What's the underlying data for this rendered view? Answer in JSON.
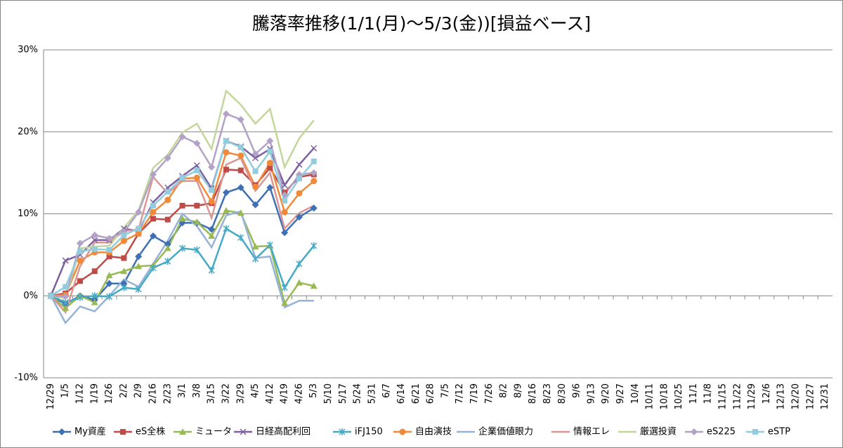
{
  "chart_data": {
    "type": "line",
    "title": "騰落率推移(1/1(月)～5/3(金))[損益ベース]",
    "categories": [
      "12/29",
      "1/5",
      "1/12",
      "1/19",
      "1/26",
      "2/2",
      "2/9",
      "2/16",
      "2/23",
      "3/1",
      "3/8",
      "3/15",
      "3/22",
      "3/29",
      "4/5",
      "4/12",
      "4/19",
      "4/26",
      "5/3",
      "5/10",
      "5/17",
      "5/24",
      "5/31",
      "6/7",
      "6/14",
      "6/21",
      "6/28",
      "7/5",
      "7/12",
      "7/19",
      "7/26",
      "8/2",
      "8/9",
      "8/16",
      "8/23",
      "8/30",
      "9/6",
      "9/13",
      "9/20",
      "9/27",
      "10/4",
      "10/11",
      "10/18",
      "10/25",
      "11/1",
      "11/8",
      "11/15",
      "11/22",
      "11/29",
      "12/6",
      "12/13",
      "12/20",
      "12/27",
      "12/31"
    ],
    "ylim": [
      -10,
      30
    ],
    "yticks": [
      {
        "value": -10,
        "label": "-10%"
      },
      {
        "value": 0,
        "label": "0%"
      },
      {
        "value": 10,
        "label": "10%"
      },
      {
        "value": 20,
        "label": "20%"
      },
      {
        "value": 30,
        "label": "30%"
      }
    ],
    "grid": true,
    "legend": "bottom",
    "series": [
      {
        "name": "My資産",
        "color": "#3f6fb5",
        "marker": "diamond",
        "values": [
          0,
          -1,
          0,
          -0.5,
          1.5,
          1.5,
          4.8,
          7.3,
          6.3,
          8.9,
          8.9,
          8.1,
          12.6,
          13.2,
          11.1,
          13.2,
          7.7,
          9.6,
          10.7,
          null,
          null,
          null,
          null,
          null,
          null,
          null,
          null,
          null,
          null,
          null,
          null,
          null,
          null,
          null,
          null,
          null,
          null,
          null,
          null,
          null,
          null,
          null,
          null,
          null,
          null,
          null,
          null,
          null,
          null,
          null,
          null,
          null,
          null,
          null
        ]
      },
      {
        "name": "eS全株",
        "color": "#be4b48",
        "marker": "square",
        "values": [
          0,
          0.3,
          1.8,
          3.0,
          4.8,
          4.6,
          7.6,
          9.4,
          9.3,
          11.0,
          11.0,
          11.3,
          15.4,
          15.3,
          13.5,
          15.6,
          12.6,
          14.5,
          14.8,
          null,
          null,
          null,
          null,
          null,
          null,
          null,
          null,
          null,
          null,
          null,
          null,
          null,
          null,
          null,
          null,
          null,
          null,
          null,
          null,
          null,
          null,
          null,
          null,
          null,
          null,
          null,
          null,
          null,
          null,
          null,
          null,
          null,
          null,
          null
        ]
      },
      {
        "name": "ミュータ",
        "color": "#98b954",
        "marker": "triangle",
        "values": [
          0,
          -1.5,
          0,
          -0.8,
          2.5,
          3.0,
          3.6,
          3.7,
          5.8,
          9.4,
          9.0,
          7.3,
          10.4,
          10.1,
          6.0,
          6.1,
          -0.9,
          1.6,
          1.2,
          null,
          null,
          null,
          null,
          null,
          null,
          null,
          null,
          null,
          null,
          null,
          null,
          null,
          null,
          null,
          null,
          null,
          null,
          null,
          null,
          null,
          null,
          null,
          null,
          null,
          null,
          null,
          null,
          null,
          null,
          null,
          null,
          null,
          null,
          null
        ]
      },
      {
        "name": "日経高配利回",
        "color": "#7d60a0",
        "marker": "x",
        "values": [
          0,
          4.3,
          5.0,
          6.8,
          6.8,
          8.2,
          7.9,
          11.4,
          13.2,
          14.6,
          15.9,
          13.1,
          18.9,
          18.2,
          16.8,
          17.9,
          13.5,
          16.0,
          18.0,
          null,
          null,
          null,
          null,
          null,
          null,
          null,
          null,
          null,
          null,
          null,
          null,
          null,
          null,
          null,
          null,
          null,
          null,
          null,
          null,
          null,
          null,
          null,
          null,
          null,
          null,
          null,
          null,
          null,
          null,
          null,
          null,
          null,
          null,
          null
        ]
      },
      {
        "name": "iFJ150",
        "color": "#46aac5",
        "marker": "star",
        "values": [
          0,
          -0.8,
          -0.2,
          0,
          -0.1,
          1.0,
          0.8,
          3.4,
          4.2,
          5.8,
          5.6,
          3.1,
          8.2,
          7.1,
          4.5,
          6.2,
          1.0,
          3.9,
          6.1,
          null,
          null,
          null,
          null,
          null,
          null,
          null,
          null,
          null,
          null,
          null,
          null,
          null,
          null,
          null,
          null,
          null,
          null,
          null,
          null,
          null,
          null,
          null,
          null,
          null,
          null,
          null,
          null,
          null,
          null,
          null,
          null,
          null,
          null,
          null
        ]
      },
      {
        "name": "自由演技",
        "color": "#f08a3a",
        "marker": "circle",
        "values": [
          0,
          0.1,
          4.3,
          5.3,
          5.3,
          6.7,
          7.6,
          10.2,
          11.7,
          14.3,
          14.4,
          11.5,
          17.5,
          17.1,
          13.3,
          16.2,
          10.2,
          12.5,
          14.0,
          null,
          null,
          null,
          null,
          null,
          null,
          null,
          null,
          null,
          null,
          null,
          null,
          null,
          null,
          null,
          null,
          null,
          null,
          null,
          null,
          null,
          null,
          null,
          null,
          null,
          null,
          null,
          null,
          null,
          null,
          null,
          null,
          null,
          null,
          null
        ]
      },
      {
        "name": "企業価値眼力",
        "color": "#95b3d7",
        "marker": "none",
        "values": [
          0,
          -3.3,
          -1.3,
          -1.9,
          0,
          2.0,
          1.1,
          3.9,
          6.7,
          10.0,
          8.5,
          5.9,
          9.8,
          10.3,
          4.6,
          4.8,
          -1.4,
          -0.6,
          -0.6,
          null,
          null,
          null,
          null,
          null,
          null,
          null,
          null,
          null,
          null,
          null,
          null,
          null,
          null,
          null,
          null,
          null,
          null,
          null,
          null,
          null,
          null,
          null,
          null,
          null,
          null,
          null,
          null,
          null,
          null,
          null,
          null,
          null,
          null,
          null
        ]
      },
      {
        "name": "情報エレ",
        "color": "#d99694",
        "marker": "none",
        "values": [
          0,
          -2.0,
          3.6,
          6.5,
          6.5,
          7.9,
          8.1,
          14.5,
          12.5,
          14.0,
          14.0,
          9.5,
          16.0,
          16.8,
          12.8,
          15.0,
          8.2,
          10.1,
          11.0,
          null,
          null,
          null,
          null,
          null,
          null,
          null,
          null,
          null,
          null,
          null,
          null,
          null,
          null,
          null,
          null,
          null,
          null,
          null,
          null,
          null,
          null,
          null,
          null,
          null,
          null,
          null,
          null,
          null,
          null,
          null,
          null,
          null,
          null,
          null
        ]
      },
      {
        "name": "厳選投資",
        "color": "#c3d69b",
        "marker": "none",
        "values": [
          0,
          -0.3,
          5.8,
          6.0,
          6.1,
          8.3,
          10.4,
          15.6,
          17.2,
          19.9,
          21.0,
          17.9,
          25.0,
          23.3,
          21.0,
          22.8,
          15.7,
          19.2,
          21.4,
          null,
          null,
          null,
          null,
          null,
          null,
          null,
          null,
          null,
          null,
          null,
          null,
          null,
          null,
          null,
          null,
          null,
          null,
          null,
          null,
          null,
          null,
          null,
          null,
          null,
          null,
          null,
          null,
          null,
          null,
          null,
          null,
          null,
          null,
          null
        ]
      },
      {
        "name": "eS225",
        "color": "#b3a2c7",
        "marker": "diamond",
        "values": [
          0,
          -0.1,
          6.4,
          7.4,
          7.0,
          7.8,
          10.2,
          14.8,
          16.8,
          19.4,
          18.6,
          15.7,
          22.2,
          21.5,
          17.3,
          18.9,
          12.3,
          14.8,
          15.0,
          null,
          null,
          null,
          null,
          null,
          null,
          null,
          null,
          null,
          null,
          null,
          null,
          null,
          null,
          null,
          null,
          null,
          null,
          null,
          null,
          null,
          null,
          null,
          null,
          null,
          null,
          null,
          null,
          null,
          null,
          null,
          null,
          null,
          null,
          null
        ]
      },
      {
        "name": "eSTP",
        "color": "#93cddd",
        "marker": "square",
        "values": [
          0,
          1.1,
          5.4,
          5.7,
          5.6,
          7.4,
          8.2,
          11.0,
          12.7,
          14.4,
          15.3,
          12.9,
          18.9,
          18.1,
          15.2,
          17.6,
          11.6,
          14.3,
          16.4,
          null,
          null,
          null,
          null,
          null,
          null,
          null,
          null,
          null,
          null,
          null,
          null,
          null,
          null,
          null,
          null,
          null,
          null,
          null,
          null,
          null,
          null,
          null,
          null,
          null,
          null,
          null,
          null,
          null,
          null,
          null,
          null,
          null,
          null,
          null
        ]
      }
    ]
  }
}
